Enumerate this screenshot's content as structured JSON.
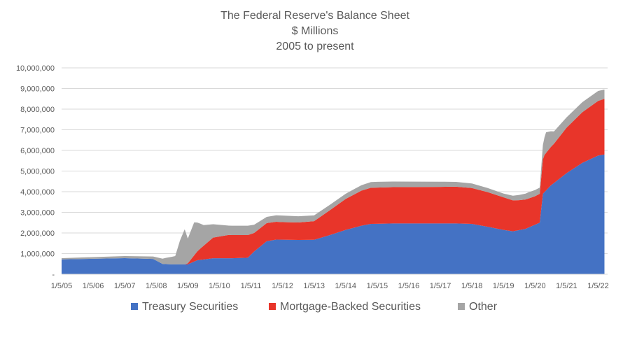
{
  "chart_data": {
    "type": "area",
    "stacked": true,
    "title": [
      "The Federal Reserve's Balance Sheet",
      "$ Millions",
      "2005 to present"
    ],
    "xlabel": "",
    "ylabel": "",
    "ylim": [
      0,
      10000000
    ],
    "xlim": [
      2005.0,
      2022.3
    ],
    "yticks": [
      {
        "value": 0,
        "label": "-"
      },
      {
        "value": 1000000,
        "label": "1,000,000"
      },
      {
        "value": 2000000,
        "label": "2,000,000"
      },
      {
        "value": 3000000,
        "label": "3,000,000"
      },
      {
        "value": 4000000,
        "label": "4,000,000"
      },
      {
        "value": 5000000,
        "label": "5,000,000"
      },
      {
        "value": 6000000,
        "label": "6,000,000"
      },
      {
        "value": 7000000,
        "label": "7,000,000"
      },
      {
        "value": 8000000,
        "label": "8,000,000"
      },
      {
        "value": 9000000,
        "label": "9,000,000"
      },
      {
        "value": 10000000,
        "label": "10,000,000"
      }
    ],
    "xticks": [
      {
        "value": 2005,
        "label": "1/5/05"
      },
      {
        "value": 2006,
        "label": "1/5/06"
      },
      {
        "value": 2007,
        "label": "1/5/07"
      },
      {
        "value": 2008,
        "label": "1/5/08"
      },
      {
        "value": 2009,
        "label": "1/5/09"
      },
      {
        "value": 2010,
        "label": "1/5/10"
      },
      {
        "value": 2011,
        "label": "1/5/11"
      },
      {
        "value": 2012,
        "label": "1/5/12"
      },
      {
        "value": 2013,
        "label": "1/5/13"
      },
      {
        "value": 2014,
        "label": "1/5/14"
      },
      {
        "value": 2015,
        "label": "1/5/15"
      },
      {
        "value": 2016,
        "label": "1/5/16"
      },
      {
        "value": 2017,
        "label": "1/5/17"
      },
      {
        "value": 2018,
        "label": "1/5/18"
      },
      {
        "value": 2019,
        "label": "1/5/19"
      },
      {
        "value": 2020,
        "label": "1/5/20"
      },
      {
        "value": 2021,
        "label": "1/5/21"
      },
      {
        "value": 2022,
        "label": "1/5/22"
      }
    ],
    "grid": true,
    "legend_position": "bottom",
    "series": [
      {
        "name": "Treasury Securities",
        "color": "#4472C4",
        "points": [
          [
            2005.0,
            720000
          ],
          [
            2006.0,
            750000
          ],
          [
            2007.0,
            780000
          ],
          [
            2007.9,
            740000
          ],
          [
            2008.2,
            500000
          ],
          [
            2008.5,
            480000
          ],
          [
            2009.0,
            480000
          ],
          [
            2009.3,
            680000
          ],
          [
            2009.8,
            775000
          ],
          [
            2010.4,
            775000
          ],
          [
            2010.9,
            800000
          ],
          [
            2011.1,
            1100000
          ],
          [
            2011.5,
            1600000
          ],
          [
            2011.8,
            1680000
          ],
          [
            2012.5,
            1660000
          ],
          [
            2013.0,
            1670000
          ],
          [
            2013.5,
            1900000
          ],
          [
            2014.0,
            2150000
          ],
          [
            2014.5,
            2350000
          ],
          [
            2014.8,
            2440000
          ],
          [
            2015.5,
            2460000
          ],
          [
            2017.5,
            2460000
          ],
          [
            2018.0,
            2440000
          ],
          [
            2018.5,
            2300000
          ],
          [
            2019.0,
            2150000
          ],
          [
            2019.3,
            2080000
          ],
          [
            2019.7,
            2200000
          ],
          [
            2020.0,
            2400000
          ],
          [
            2020.15,
            2500000
          ],
          [
            2020.25,
            3900000
          ],
          [
            2020.5,
            4300000
          ],
          [
            2021.0,
            4900000
          ],
          [
            2021.5,
            5400000
          ],
          [
            2022.0,
            5750000
          ],
          [
            2022.2,
            5800000
          ]
        ]
      },
      {
        "name": "Mortgage-Backed Securities",
        "color": "#E8352A",
        "points": [
          [
            2005.0,
            0
          ],
          [
            2008.9,
            0
          ],
          [
            2009.0,
            50000
          ],
          [
            2009.4,
            550000
          ],
          [
            2009.8,
            1000000
          ],
          [
            2010.3,
            1130000
          ],
          [
            2010.9,
            1100000
          ],
          [
            2011.1,
            900000
          ],
          [
            2011.5,
            880000
          ],
          [
            2012.0,
            850000
          ],
          [
            2012.5,
            850000
          ],
          [
            2013.0,
            900000
          ],
          [
            2013.5,
            1200000
          ],
          [
            2014.0,
            1500000
          ],
          [
            2014.5,
            1700000
          ],
          [
            2014.8,
            1750000
          ],
          [
            2015.5,
            1760000
          ],
          [
            2017.5,
            1780000
          ],
          [
            2018.0,
            1740000
          ],
          [
            2018.5,
            1680000
          ],
          [
            2019.0,
            1580000
          ],
          [
            2019.5,
            1450000
          ],
          [
            2020.0,
            1380000
          ],
          [
            2020.15,
            1400000
          ],
          [
            2020.3,
            1800000
          ],
          [
            2020.6,
            1900000
          ],
          [
            2021.0,
            2200000
          ],
          [
            2021.5,
            2450000
          ],
          [
            2022.0,
            2650000
          ],
          [
            2022.2,
            2700000
          ]
        ]
      },
      {
        "name": "Other",
        "color": "#A5A5A5",
        "points": [
          [
            2005.0,
            60000
          ],
          [
            2007.9,
            120000
          ],
          [
            2008.3,
            300000
          ],
          [
            2008.6,
            400000
          ],
          [
            2008.75,
            1150000
          ],
          [
            2008.9,
            1700000
          ],
          [
            2009.0,
            1200000
          ],
          [
            2009.2,
            1600000
          ],
          [
            2009.5,
            1000000
          ],
          [
            2009.8,
            650000
          ],
          [
            2010.3,
            450000
          ],
          [
            2010.9,
            450000
          ],
          [
            2011.5,
            300000
          ],
          [
            2012.0,
            320000
          ],
          [
            2012.5,
            300000
          ],
          [
            2013.0,
            280000
          ],
          [
            2014.0,
            250000
          ],
          [
            2015.0,
            280000
          ],
          [
            2017.0,
            250000
          ],
          [
            2018.0,
            220000
          ],
          [
            2019.0,
            180000
          ],
          [
            2019.8,
            300000
          ],
          [
            2020.15,
            300000
          ],
          [
            2020.25,
            700000
          ],
          [
            2020.35,
            1000000
          ],
          [
            2020.6,
            600000
          ],
          [
            2021.0,
            500000
          ],
          [
            2022.0,
            480000
          ],
          [
            2022.2,
            450000
          ]
        ]
      }
    ]
  }
}
